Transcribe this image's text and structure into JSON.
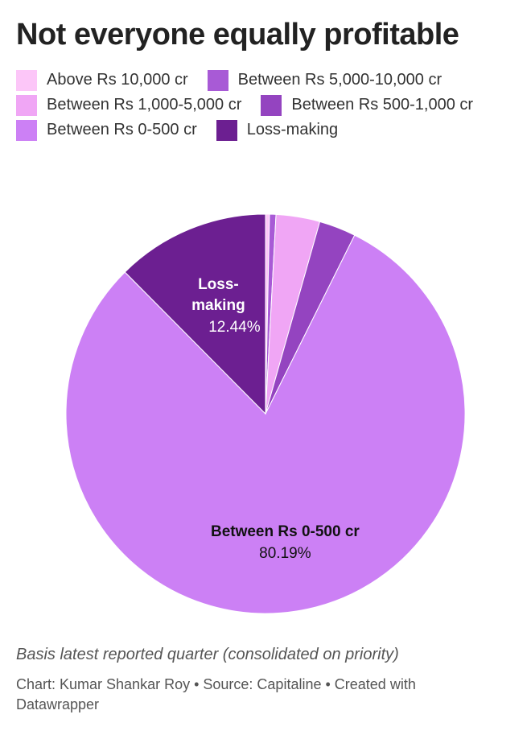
{
  "chart_data": {
    "type": "pie",
    "title": "Not everyone equally profitable",
    "categories": [
      "Above Rs 10,000 cr",
      "Between Rs 5,000-10,000 cr",
      "Between Rs 1,000-5,000 cr",
      "Between Rs 500-1,000 cr",
      "Between Rs 0-500 cr",
      "Loss-making"
    ],
    "values": [
      0.32,
      0.52,
      3.55,
      2.98,
      80.19,
      12.44
    ],
    "value_labels": [
      null,
      null,
      null,
      null,
      "80.19%",
      "12.44%"
    ],
    "colors": [
      "#fcc6f8",
      "#a85ad6",
      "#f0a6f5",
      "#9444c0",
      "#cc80f5",
      "#6c1f91"
    ],
    "note": "Basis latest reported quarter (consolidated on priority)",
    "source": "Chart: Kumar Shankar Roy • Source: Capitaline • Created with Datawrapper"
  }
}
